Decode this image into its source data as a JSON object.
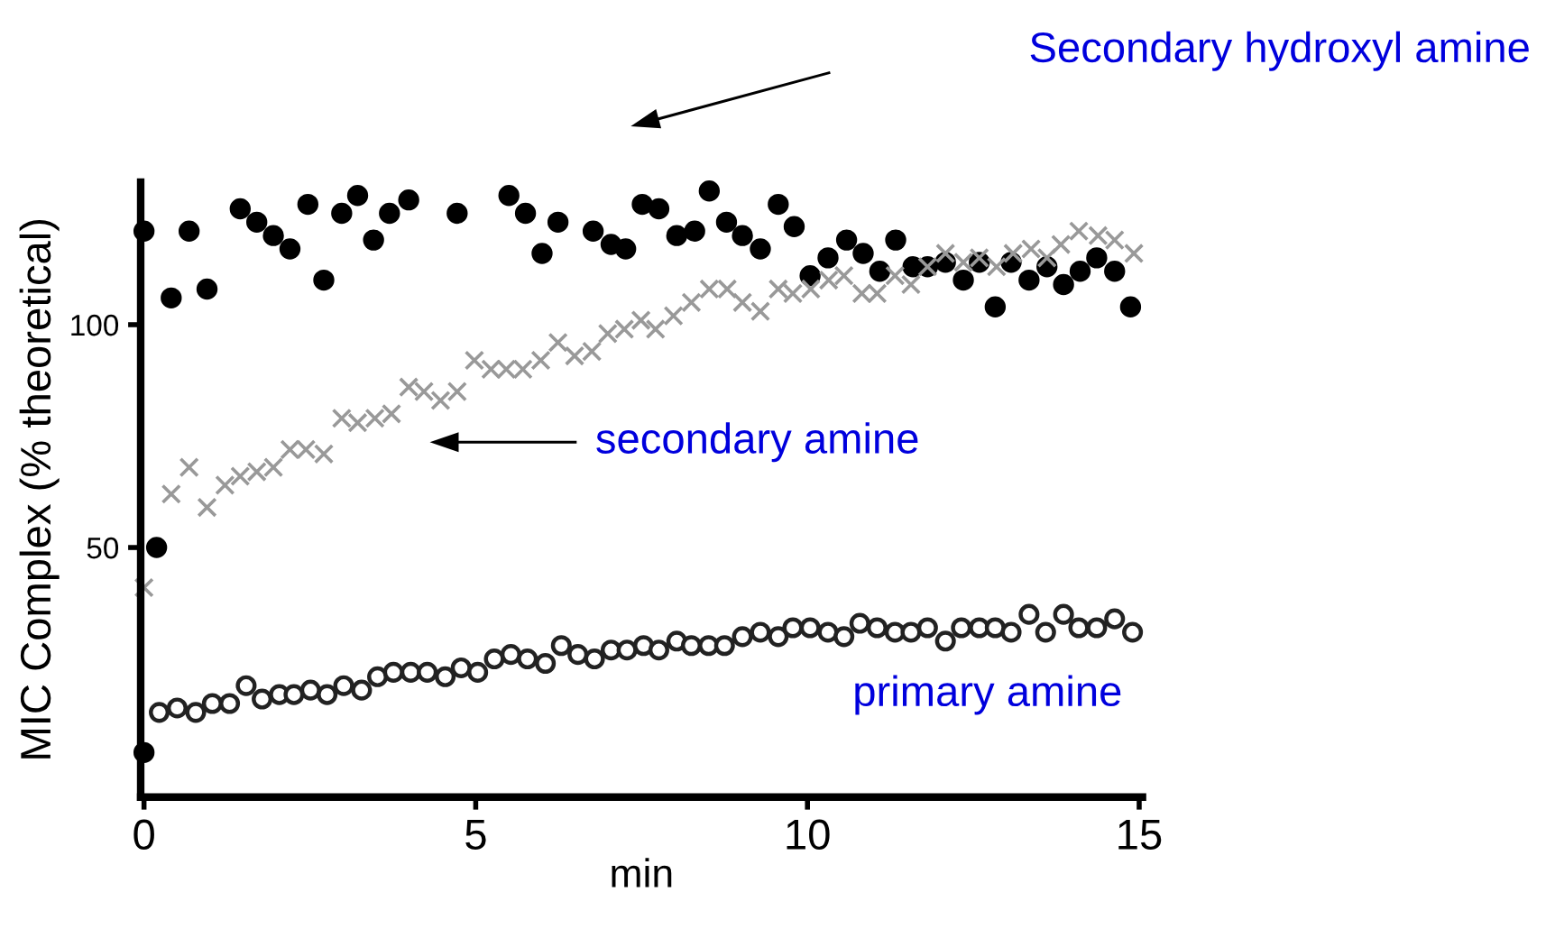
{
  "chart_data": {
    "type": "scatter",
    "xlabel": "min",
    "ylabel": "MIC Complex (% theoretical)",
    "annotations": [
      "Secondary hydroxyl amine",
      "secondary amine",
      "primary amine"
    ],
    "xlim": [
      -0.05,
      15.05
    ],
    "ylim": [
      -6,
      132
    ],
    "xticks": [
      0,
      5,
      10,
      15
    ],
    "yticks": [
      50,
      100
    ],
    "grid": false,
    "legend": false,
    "series": [
      {
        "color": "#000000",
        "marker": "circle",
        "x": [
          0,
          0,
          0.19,
          0.41,
          0.68,
          0.95,
          1.45,
          1.7,
          1.95,
          2.2,
          2.47,
          2.71,
          2.98,
          3.22,
          3.46,
          3.7,
          3.99,
          4.72,
          5.5,
          5.75,
          6.0,
          6.24,
          6.77,
          7.04,
          7.26,
          7.51,
          7.76,
          8.03,
          8.3,
          8.52,
          8.78,
          9.02,
          9.29,
          9.56,
          9.8,
          10.04,
          10.31,
          10.59,
          10.84,
          11.09,
          11.33,
          11.59,
          11.81,
          12.08,
          12.35,
          12.59,
          12.83,
          13.07,
          13.34,
          13.61,
          13.86,
          14.11,
          14.36,
          14.63,
          14.87
        ],
        "values": [
          4,
          121,
          50,
          106,
          121,
          108,
          126,
          123,
          120,
          117,
          127,
          110,
          125,
          129,
          119,
          125,
          128,
          125,
          129,
          125,
          116,
          123,
          121,
          118,
          117,
          127,
          126,
          120,
          121,
          130,
          123,
          120,
          117,
          127,
          122,
          111,
          115,
          119,
          116,
          112,
          119,
          113,
          113,
          114,
          110,
          114,
          104,
          114,
          110,
          113,
          109,
          112,
          115,
          112,
          104
        ]
      },
      {
        "color": "#999999",
        "marker": "cross",
        "x": [
          0,
          0.41,
          0.68,
          0.95,
          1.22,
          1.45,
          1.7,
          1.95,
          2.2,
          2.44,
          2.71,
          2.98,
          3.22,
          3.48,
          3.73,
          3.99,
          4.22,
          4.47,
          4.72,
          4.98,
          5.23,
          5.46,
          5.71,
          5.98,
          6.24,
          6.49,
          6.75,
          6.99,
          7.24,
          7.49,
          7.71,
          7.98,
          8.25,
          8.52,
          8.79,
          9.02,
          9.29,
          9.56,
          9.78,
          10.05,
          10.32,
          10.55,
          10.82,
          11.05,
          11.32,
          11.56,
          11.81,
          12.08,
          12.35,
          12.59,
          12.85,
          13.1,
          13.37,
          13.61,
          13.82,
          14.09,
          14.38,
          14.63,
          14.92
        ],
        "values": [
          41,
          62,
          68,
          59,
          64,
          66,
          67,
          68,
          72,
          72,
          71,
          79,
          78,
          79,
          80,
          86,
          85,
          83,
          85,
          92,
          90,
          90,
          90,
          92,
          96,
          93,
          94,
          98,
          99,
          101,
          99,
          102,
          105,
          108,
          108,
          105,
          103,
          108,
          107,
          108,
          110,
          111,
          107,
          107,
          111,
          109,
          113,
          116,
          114,
          115,
          113,
          116,
          117,
          115,
          118,
          121,
          120,
          119,
          116
        ]
      },
      {
        "color": "#222222",
        "marker": "circle",
        "x": [
          0.23,
          0.5,
          0.78,
          1.03,
          1.29,
          1.54,
          1.78,
          2.04,
          2.26,
          2.51,
          2.76,
          3.01,
          3.28,
          3.52,
          3.76,
          4.02,
          4.27,
          4.54,
          4.78,
          5.03,
          5.28,
          5.53,
          5.78,
          6.05,
          6.29,
          6.54,
          6.79,
          7.04,
          7.28,
          7.53,
          7.76,
          8.03,
          8.25,
          8.51,
          8.75,
          9.02,
          9.29,
          9.56,
          9.78,
          10.04,
          10.31,
          10.55,
          10.79,
          11.05,
          11.32,
          11.56,
          11.81,
          12.08,
          12.32,
          12.59,
          12.83,
          13.07,
          13.34,
          13.59,
          13.86,
          14.09,
          14.36,
          14.63,
          14.9
        ],
        "values": [
          13,
          14,
          13,
          15,
          15,
          19,
          16,
          17,
          17,
          18,
          17,
          19,
          18,
          21,
          22,
          22,
          22,
          21,
          23,
          22,
          25,
          26,
          25,
          24,
          28,
          26,
          25,
          27,
          27,
          28,
          27,
          29,
          28,
          28,
          28,
          30,
          31,
          30,
          32,
          32,
          31,
          30,
          33,
          32,
          31,
          31,
          32,
          29,
          32,
          32,
          32,
          31,
          35,
          31,
          35,
          32,
          32,
          34,
          31
        ]
      }
    ]
  }
}
